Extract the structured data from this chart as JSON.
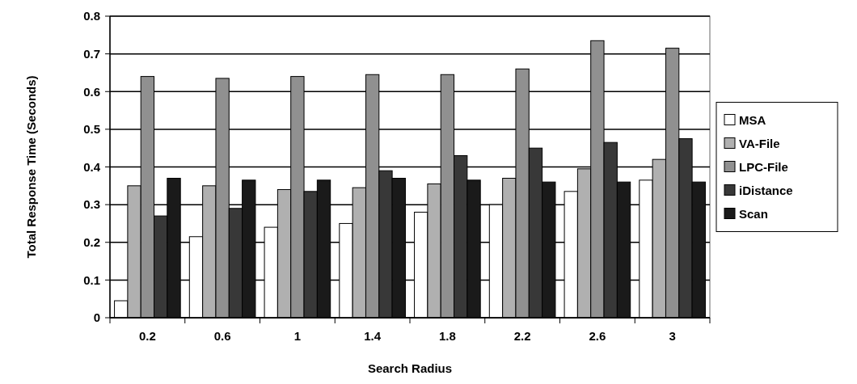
{
  "chart_data": {
    "type": "bar",
    "xlabel": "Search Radius",
    "ylabel": "Total Response Time (Seconds)",
    "categories": [
      "0.2",
      "0.6",
      "1",
      "1.4",
      "1.8",
      "2.2",
      "2.6",
      "3"
    ],
    "series": [
      {
        "name": "MSA",
        "color": "#ffffff",
        "values": [
          0.045,
          0.215,
          0.24,
          0.25,
          0.28,
          0.3,
          0.335,
          0.365
        ]
      },
      {
        "name": "VA-File",
        "color": "#b0b0b0",
        "values": [
          0.35,
          0.35,
          0.34,
          0.345,
          0.355,
          0.37,
          0.395,
          0.42
        ]
      },
      {
        "name": "LPC-File",
        "color": "#909090",
        "values": [
          0.64,
          0.635,
          0.64,
          0.645,
          0.645,
          0.66,
          0.735,
          0.715
        ]
      },
      {
        "name": "iDistance",
        "color": "#383838",
        "values": [
          0.27,
          0.29,
          0.335,
          0.39,
          0.43,
          0.45,
          0.465,
          0.475
        ]
      },
      {
        "name": "Scan",
        "color": "#1a1a1a",
        "values": [
          0.37,
          0.365,
          0.365,
          0.37,
          0.365,
          0.36,
          0.36,
          0.36
        ]
      }
    ],
    "ylim": [
      0,
      0.8
    ],
    "yticks": [
      0,
      0.1,
      0.2,
      0.3,
      0.4,
      0.5,
      0.6,
      0.7,
      0.8
    ],
    "grid": "y",
    "legend": "right"
  }
}
